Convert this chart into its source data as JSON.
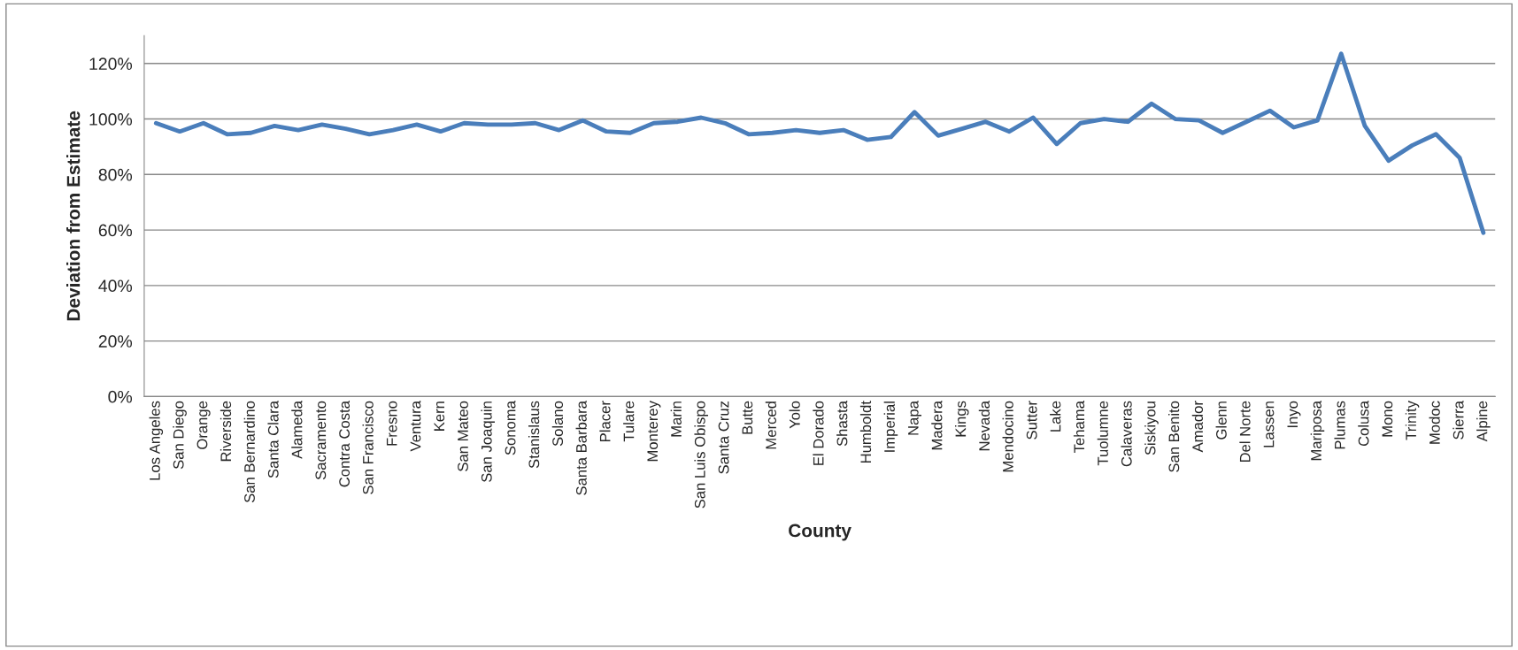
{
  "chart_data": {
    "type": "line",
    "xlabel": "County",
    "ylabel": "Deviation from Estimate",
    "categories": [
      "Los Angeles",
      "San Diego",
      "Orange",
      "Riverside",
      "San Bernardino",
      "Santa Clara",
      "Alameda",
      "Sacramento",
      "Contra Costa",
      "San Francisco",
      "Fresno",
      "Ventura",
      "Kern",
      "San Mateo",
      "San Joaquin",
      "Sonoma",
      "Stanislaus",
      "Solano",
      "Santa Barbara",
      "Placer",
      "Tulare",
      "Monterey",
      "Marin",
      "San Luis Obispo",
      "Santa Cruz",
      "Butte",
      "Merced",
      "Yolo",
      "El Dorado",
      "Shasta",
      "Humboldt",
      "Imperial",
      "Napa",
      "Madera",
      "Kings",
      "Nevada",
      "Mendocino",
      "Sutter",
      "Lake",
      "Tehama",
      "Tuolumne",
      "Calaveras",
      "Siskiyou",
      "San Benito",
      "Amador",
      "Glenn",
      "Del Norte",
      "Lassen",
      "Inyo",
      "Mariposa",
      "Plumas",
      "Colusa",
      "Mono",
      "Trinity",
      "Modoc",
      "Sierra",
      "Alpine"
    ],
    "series": [
      {
        "color": "#4a7ebb",
        "values": [
          98.5,
          95.5,
          98.5,
          94.5,
          95,
          97.5,
          96,
          98,
          96.5,
          94.5,
          96,
          98,
          95.5,
          98.5,
          98,
          98,
          98.5,
          96,
          99.5,
          95.5,
          95,
          98.5,
          99,
          100.5,
          98.5,
          94.5,
          95,
          96,
          95,
          96,
          92.5,
          93.5,
          102.5,
          94,
          96.5,
          99,
          95.5,
          100.5,
          91,
          98.5,
          100,
          99,
          105.5,
          100,
          99.5,
          95,
          99,
          103,
          97,
          99.5,
          123.5,
          97.5,
          85,
          90.5,
          94.5,
          86,
          59
        ]
      }
    ],
    "ylim": [
      0,
      130
    ],
    "yticks": [
      {
        "value": 0,
        "label": "0%"
      },
      {
        "value": 20,
        "label": "20%"
      },
      {
        "value": 40,
        "label": "40%"
      },
      {
        "value": 60,
        "label": "60%"
      },
      {
        "value": 80,
        "label": "80%"
      },
      {
        "value": 100,
        "label": "100%"
      },
      {
        "value": 120,
        "label": "120%"
      }
    ],
    "grid": "y",
    "legend": false,
    "marker": "none",
    "line_style": "solid"
  }
}
